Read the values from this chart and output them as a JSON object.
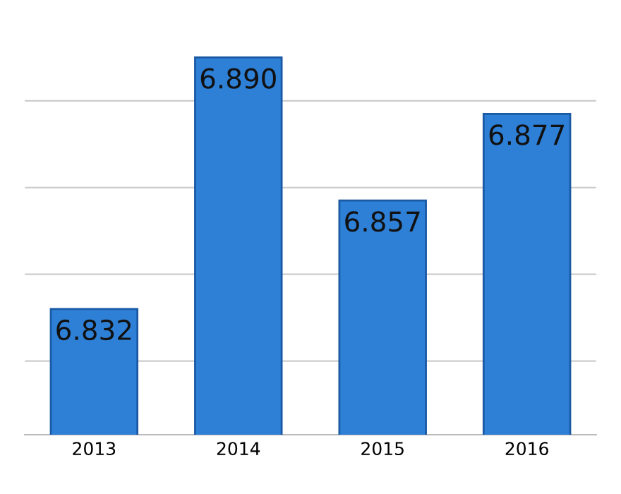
{
  "chart_data": {
    "type": "bar",
    "categories": [
      "2013",
      "2014",
      "2015",
      "2016"
    ],
    "values": [
      6.832,
      6.89,
      6.857,
      6.877
    ],
    "value_labels": [
      "6.832",
      "6.890",
      "6.857",
      "6.877"
    ],
    "color": "#2e7fd6",
    "grid": "y",
    "tick_labels": "x"
  }
}
